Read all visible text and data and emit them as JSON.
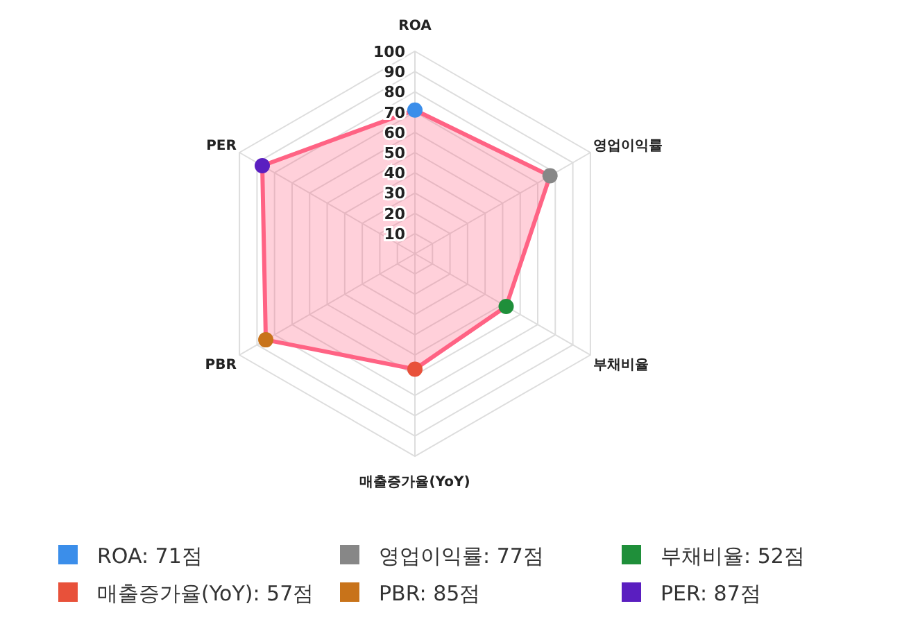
{
  "chart_data": {
    "type": "radar",
    "categories": [
      "ROA",
      "영업이익률",
      "부채비율",
      "매출증가율(YoY)",
      "PBR",
      "PER"
    ],
    "series": [
      {
        "color": "#ff6384",
        "values": [
          71,
          77,
          52,
          57,
          85,
          87
        ],
        "colors": [
          "#3b8eea",
          "#878787",
          "#1f8f3a",
          "#e8513a",
          "#c8731a",
          "#5a1ec0"
        ]
      }
    ],
    "ylim": [
      0,
      100
    ],
    "yticks": [
      10,
      20,
      30,
      40,
      50,
      60,
      70,
      80,
      90,
      100
    ],
    "grid": true,
    "marker": "circle",
    "annotations": [
      "ROA: 71점",
      "영업이익률: 77점",
      "부채비율: 52점",
      "매출증가율(YoY): 57점",
      "PBR: 85점",
      "PER: 87점"
    ]
  }
}
